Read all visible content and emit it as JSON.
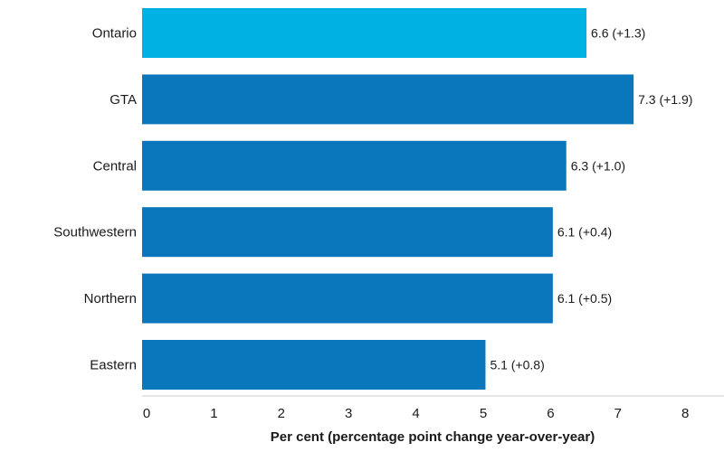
{
  "chart_data": {
    "type": "bar",
    "orientation": "horizontal",
    "categories": [
      "Ontario",
      "GTA",
      "Central",
      "Southwestern",
      "Northern",
      "Eastern"
    ],
    "values": [
      6.6,
      7.3,
      6.3,
      6.1,
      6.1,
      5.1
    ],
    "changes": [
      "+1.3",
      "+1.9",
      "+1.0",
      "+0.4",
      "+0.5",
      "+0.8"
    ],
    "data_labels": [
      "6.6 (+1.3)",
      "7.3 (+1.9)",
      "6.3 (+1.0)",
      "6.1 (+0.4)",
      "6.1 (+0.5)",
      "5.1 (+0.8)"
    ],
    "highlight_category": "Ontario",
    "colors": {
      "highlight": "#00b2e3",
      "default": "#0a77bd"
    },
    "xlim": [
      0,
      8
    ],
    "xticks": [
      "0",
      "1",
      "2",
      "3",
      "4",
      "5",
      "6",
      "7",
      "8"
    ],
    "xlabel": "Per cent (percentage point change year-over-year)",
    "ylabel": "",
    "title": "",
    "grid": false,
    "legend": "none"
  }
}
